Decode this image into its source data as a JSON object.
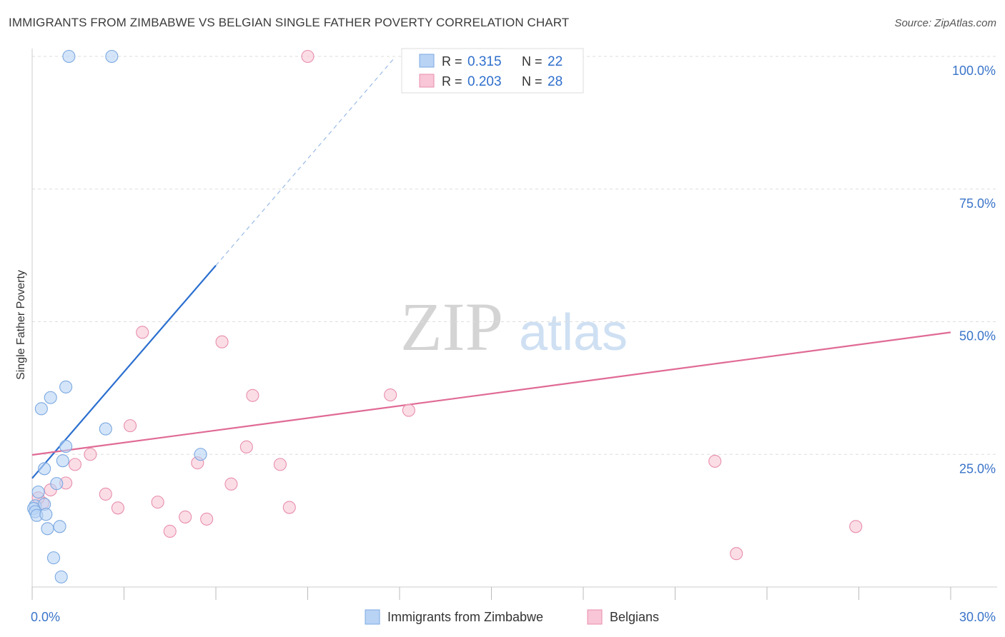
{
  "title": "IMMIGRANTS FROM ZIMBABWE VS BELGIAN SINGLE FATHER POVERTY CORRELATION CHART",
  "source": "Source: ZipAtlas.com",
  "watermark": {
    "zip": "ZIP",
    "atlas": "atlas"
  },
  "colors": {
    "blue_fill": "#b9d3f5",
    "blue_stroke": "#7aa8e0",
    "blue_line": "#2b6fcf",
    "pink_fill": "#f8c6d6",
    "pink_stroke": "#e88eac",
    "pink_line": "#e06a95",
    "axis_label": "#3a74c9",
    "grid": "#dddddd"
  },
  "chart_data": {
    "type": "scatter",
    "title": "IMMIGRANTS FROM ZIMBABWE VS BELGIAN SINGLE FATHER POVERTY CORRELATION CHART",
    "xlabel": "",
    "ylabel": "Single Father Poverty",
    "xlim": [
      0,
      30
    ],
    "ylim": [
      0,
      102
    ],
    "x_ticks": [
      0,
      3,
      6,
      9,
      12,
      15,
      18,
      21,
      24,
      27,
      30
    ],
    "x_tick_labels": [
      {
        "value": 0,
        "label": "0.0%"
      },
      {
        "value": 30,
        "label": "30.0%"
      }
    ],
    "y_ticks": [
      {
        "value": 25,
        "label": "25.0%"
      },
      {
        "value": 50,
        "label": "50.0%"
      },
      {
        "value": 75,
        "label": "75.0%"
      },
      {
        "value": 100,
        "label": "100.0%"
      }
    ],
    "grid": true,
    "legend_position": "top-center",
    "stats_legend": [
      {
        "r_label": "R =",
        "r_value": "0.315",
        "n_label": "N =",
        "n_value": "22"
      },
      {
        "r_label": "R =",
        "r_value": "0.203",
        "n_label": "N =",
        "n_value": "28"
      }
    ],
    "series": [
      {
        "name": "Immigrants from Zimbabwe",
        "color": "#b9d3f5",
        "points": [
          [
            1.2,
            100
          ],
          [
            2.6,
            100
          ],
          [
            1.1,
            37.7
          ],
          [
            0.6,
            35.7
          ],
          [
            0.3,
            33.6
          ],
          [
            2.4,
            29.8
          ],
          [
            1.1,
            26.5
          ],
          [
            1.0,
            23.8
          ],
          [
            0.4,
            22.3
          ],
          [
            5.5,
            25.0
          ],
          [
            0.8,
            19.5
          ],
          [
            0.2,
            17.9
          ],
          [
            0.1,
            15.3
          ],
          [
            0.4,
            15.6
          ],
          [
            0.05,
            14.8
          ],
          [
            0.1,
            14.2
          ],
          [
            0.15,
            13.5
          ],
          [
            0.45,
            13.7
          ],
          [
            0.5,
            11.0
          ],
          [
            0.9,
            11.4
          ],
          [
            0.7,
            5.5
          ],
          [
            0.95,
            1.9
          ]
        ],
        "trend": {
          "x": [
            0,
            6.0
          ],
          "y": [
            20.5,
            60.6
          ]
        },
        "trend_extension": {
          "x": [
            6.0,
            11.8
          ],
          "y": [
            60.6,
            99.5
          ]
        }
      },
      {
        "name": "Belgians",
        "color": "#f8c6d6",
        "points": [
          [
            9.0,
            100
          ],
          [
            15.0,
            100
          ],
          [
            3.6,
            48.0
          ],
          [
            6.2,
            46.2
          ],
          [
            7.2,
            36.1
          ],
          [
            11.7,
            36.2
          ],
          [
            12.3,
            33.3
          ],
          [
            3.2,
            30.4
          ],
          [
            7.0,
            26.4
          ],
          [
            1.9,
            25.0
          ],
          [
            1.4,
            23.1
          ],
          [
            5.4,
            23.4
          ],
          [
            8.1,
            23.1
          ],
          [
            22.3,
            23.7
          ],
          [
            6.5,
            19.4
          ],
          [
            1.1,
            19.6
          ],
          [
            0.6,
            18.3
          ],
          [
            2.4,
            17.5
          ],
          [
            4.1,
            16.0
          ],
          [
            0.35,
            15.8
          ],
          [
            2.8,
            14.9
          ],
          [
            8.4,
            15.0
          ],
          [
            5.0,
            13.2
          ],
          [
            5.7,
            12.8
          ],
          [
            4.5,
            10.5
          ],
          [
            26.9,
            11.4
          ],
          [
            23.0,
            6.3
          ],
          [
            0.2,
            16.8
          ]
        ],
        "trend": {
          "x": [
            0,
            30
          ],
          "y": [
            24.9,
            48.0
          ]
        }
      }
    ]
  }
}
